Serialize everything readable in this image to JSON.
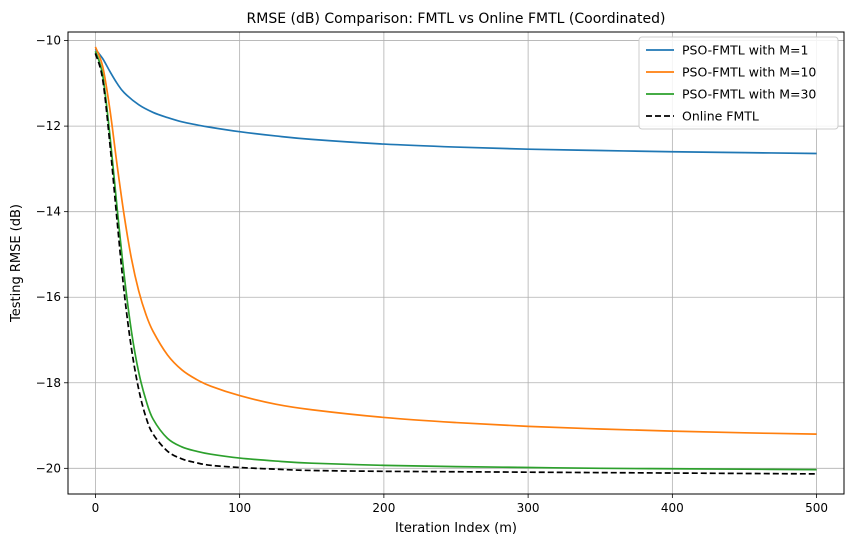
{
  "chart_data": {
    "type": "line",
    "title": "RMSE (dB) Comparison: FMTL vs Online FMTL (Coordinated)",
    "xlabel": "Iteration Index (m)",
    "ylabel": "Testing RMSE (dB)",
    "xlim": [
      -19,
      519
    ],
    "ylim": [
      -20.6,
      -9.8
    ],
    "xticks": [
      0,
      100,
      200,
      300,
      400,
      500
    ],
    "yticks": [
      -10,
      -12,
      -14,
      -16,
      -18,
      -20
    ],
    "xtick_labels": [
      "0",
      "100",
      "200",
      "300",
      "400",
      "500"
    ],
    "ytick_labels": [
      "−10",
      "−12",
      "−14",
      "−16",
      "−18",
      "−20"
    ],
    "grid": true,
    "legend_position": "upper right",
    "series": [
      {
        "name": "PSO-FMTL with M=1",
        "color": "#1f77b4",
        "dash": "solid",
        "x": [
          0,
          5,
          10,
          15,
          20,
          30,
          40,
          50,
          60,
          70,
          80,
          100,
          125,
          150,
          200,
          250,
          300,
          350,
          400,
          450,
          500
        ],
        "y": [
          -10.2,
          -10.42,
          -10.72,
          -11.0,
          -11.22,
          -11.5,
          -11.68,
          -11.8,
          -11.9,
          -11.97,
          -12.03,
          -12.13,
          -12.23,
          -12.31,
          -12.42,
          -12.49,
          -12.54,
          -12.57,
          -12.6,
          -12.62,
          -12.64
        ]
      },
      {
        "name": "PSO-FMTL with M=10",
        "color": "#ff7f0e",
        "dash": "solid",
        "x": [
          0,
          5,
          10,
          15,
          20,
          25,
          30,
          35,
          40,
          50,
          60,
          70,
          80,
          100,
          125,
          150,
          200,
          250,
          300,
          350,
          400,
          450,
          500
        ],
        "y": [
          -10.15,
          -10.6,
          -11.6,
          -12.9,
          -14.1,
          -15.1,
          -15.85,
          -16.4,
          -16.8,
          -17.35,
          -17.7,
          -17.92,
          -18.08,
          -18.3,
          -18.5,
          -18.63,
          -18.81,
          -18.93,
          -19.02,
          -19.08,
          -19.13,
          -19.17,
          -19.2
        ]
      },
      {
        "name": "PSO-FMTL with M=30",
        "color": "#2ca02c",
        "dash": "solid",
        "x": [
          0,
          5,
          10,
          15,
          20,
          25,
          30,
          35,
          40,
          50,
          60,
          70,
          80,
          100,
          125,
          150,
          200,
          250,
          300,
          350,
          400,
          450,
          500
        ],
        "y": [
          -10.25,
          -10.8,
          -12.2,
          -13.9,
          -15.5,
          -16.8,
          -17.75,
          -18.4,
          -18.85,
          -19.3,
          -19.5,
          -19.6,
          -19.67,
          -19.76,
          -19.83,
          -19.88,
          -19.93,
          -19.96,
          -19.98,
          -20.0,
          -20.01,
          -20.02,
          -20.03
        ]
      },
      {
        "name": "Online FMTL",
        "color": "#000000",
        "dash": "dashed",
        "x": [
          0,
          5,
          10,
          15,
          20,
          25,
          30,
          35,
          40,
          50,
          60,
          70,
          80,
          100,
          125,
          150,
          200,
          250,
          300,
          350,
          400,
          450,
          500
        ],
        "y": [
          -10.3,
          -10.9,
          -12.4,
          -14.2,
          -15.9,
          -17.2,
          -18.15,
          -18.8,
          -19.2,
          -19.6,
          -19.78,
          -19.87,
          -19.93,
          -19.98,
          -20.02,
          -20.05,
          -20.07,
          -20.08,
          -20.09,
          -20.1,
          -20.11,
          -20.12,
          -20.13
        ]
      }
    ]
  }
}
